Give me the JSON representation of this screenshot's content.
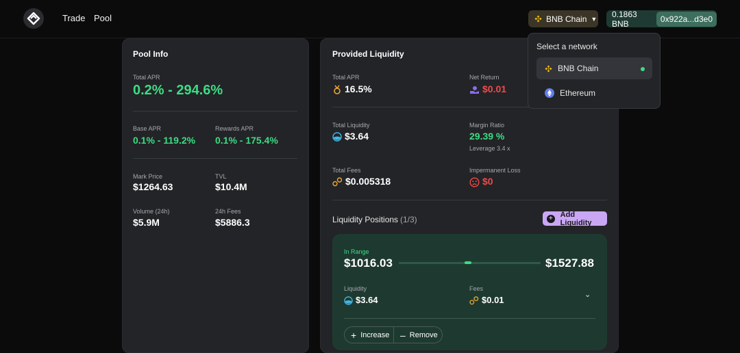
{
  "nav": {
    "items": [
      "Trade",
      "Pool"
    ]
  },
  "network_button": {
    "label": "BNB Chain"
  },
  "wallet": {
    "balance": "0.1863 BNB",
    "address": "0x922a...d3e0"
  },
  "network_menu": {
    "title": "Select a network",
    "options": [
      {
        "label": "BNB Chain",
        "selected": true
      },
      {
        "label": "Ethereum",
        "selected": false
      }
    ]
  },
  "pool_info": {
    "title": "Pool Info",
    "total_apr_label": "Total APR",
    "total_apr": "0.2% - 294.6%",
    "base_apr_label": "Base APR",
    "base_apr": "0.1% - 119.2%",
    "rewards_apr_label": "Rewards APR",
    "rewards_apr": "0.1% - 175.4%",
    "mark_price_label": "Mark Price",
    "mark_price": "$1264.63",
    "tvl_label": "TVL",
    "tvl": "$10.4M",
    "volume_label": "Volume (24h)",
    "volume": "$5.9M",
    "fees_label": "24h Fees",
    "fees": "$5886.3"
  },
  "provided": {
    "title": "Provided Liquidity",
    "total_apr_label": "Total APR",
    "total_apr": "16.5%",
    "net_return_label": "Net Return",
    "net_return": "$0.01",
    "total_liquidity_label": "Total Liquidity",
    "total_liquidity": "$3.64",
    "margin_ratio_label": "Margin Ratio",
    "margin_ratio": "29.39 %",
    "leverage": "Leverage 3.4 x",
    "total_fees_label": "Total Fees",
    "total_fees": "$0.005318",
    "imp_loss_label": "Impermanent Loss",
    "imp_loss": "$0"
  },
  "positions": {
    "title": "Liquidity Positions",
    "count": "(1/3)",
    "add_label": "Add Liquidity",
    "item": {
      "status": "In Range",
      "min_price": "$1016.03",
      "max_price": "$1527.88",
      "liquidity_label": "Liquidity",
      "liquidity": "$3.64",
      "fees_label": "Fees",
      "fees": "$0.01",
      "increase_label": "Increase",
      "remove_label": "Remove"
    }
  }
}
